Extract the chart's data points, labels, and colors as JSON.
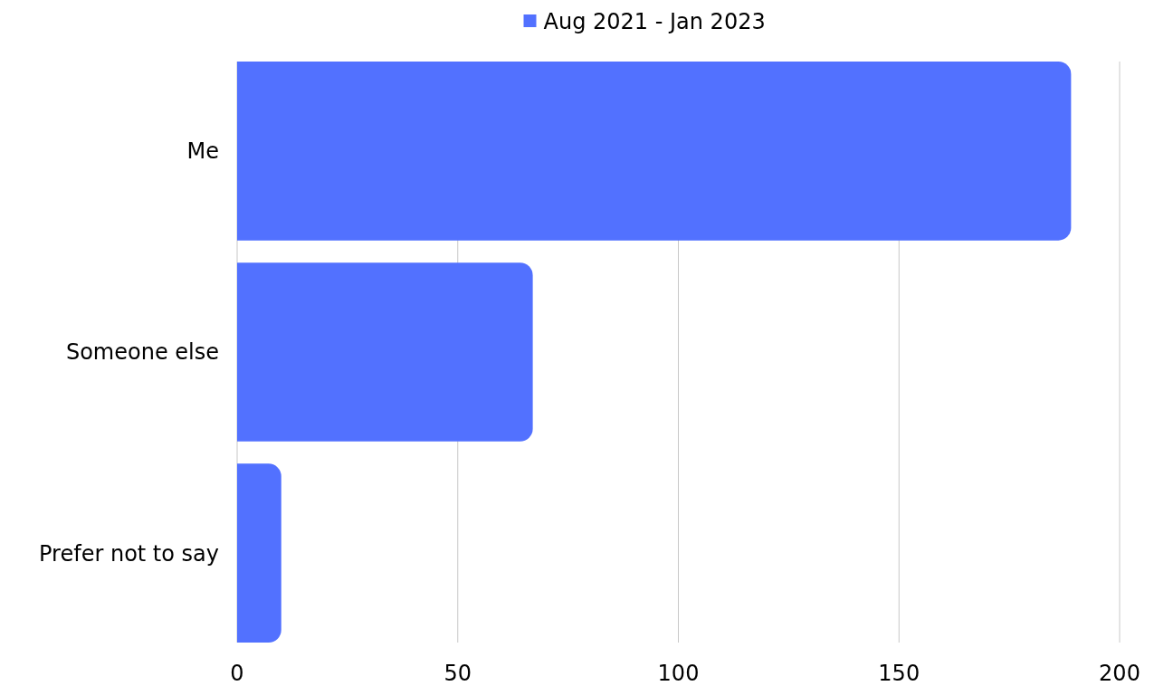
{
  "chart_data": {
    "type": "bar",
    "orientation": "horizontal",
    "categories": [
      "Me",
      "Someone else",
      "Prefer not to say"
    ],
    "series": [
      {
        "name": "Aug 2021 - Jan 2023",
        "color": "#5271ff",
        "values": [
          189,
          67,
          10
        ]
      }
    ],
    "xlim": [
      0,
      200
    ],
    "xticks": [
      0,
      50,
      100,
      150,
      200
    ],
    "grid": "x",
    "legend": "top"
  }
}
